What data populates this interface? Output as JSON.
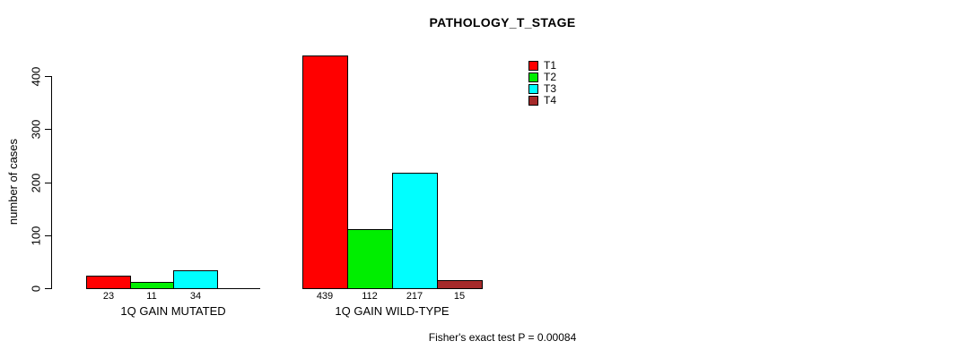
{
  "title": "PATHOLOGY_T_STAGE",
  "y_axis": {
    "label": "number of cases",
    "ticks": [
      0,
      100,
      200,
      300,
      400
    ]
  },
  "footer": "Fisher's exact test P = 0.00084",
  "chart_data": {
    "type": "bar",
    "title": "PATHOLOGY_T_STAGE",
    "xlabel": "",
    "ylabel": "number of cases",
    "ylim": [
      0,
      400
    ],
    "grid": false,
    "legend_position": "top-right",
    "categories": [
      "1Q GAIN MUTATED",
      "1Q GAIN WILD-TYPE"
    ],
    "series": [
      {
        "name": "T1",
        "color": "#FF0000",
        "values": [
          23,
          439
        ]
      },
      {
        "name": "T2",
        "color": "#00EE00",
        "values": [
          11,
          112
        ]
      },
      {
        "name": "T3",
        "color": "#00FFFF",
        "values": [
          34,
          217
        ]
      },
      {
        "name": "T4",
        "color": "#A52A2A",
        "values": [
          0,
          15
        ]
      }
    ],
    "annotation": "Fisher's exact test P = 0.00084"
  }
}
